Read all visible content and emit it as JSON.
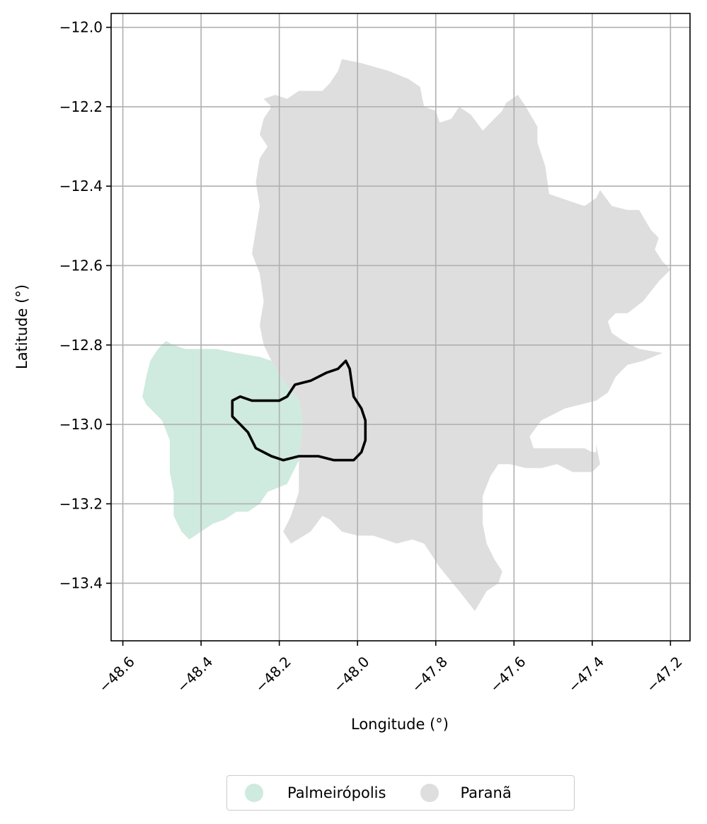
{
  "map": {
    "xlabel": "Longitude (°)",
    "ylabel": "Latitude (°)",
    "xlim": [
      -48.63,
      -47.15
    ],
    "ylim": [
      -13.545,
      -11.965
    ],
    "x_ticks": [
      -48.6,
      -48.4,
      -48.2,
      -48.0,
      -47.8,
      -47.6,
      -47.4,
      -47.2
    ],
    "y_ticks": [
      -12.0,
      -12.2,
      -12.4,
      -12.6,
      -12.8,
      -13.0,
      -13.2,
      -13.4
    ],
    "x_tick_labels": [
      "−48.6",
      "−48.4",
      "−48.2",
      "−48.0",
      "−47.8",
      "−47.6",
      "−47.4",
      "−47.2"
    ],
    "y_tick_labels": [
      "−12.0",
      "−12.2",
      "−12.4",
      "−12.6",
      "−12.8",
      "−13.0",
      "−13.2",
      "−13.4"
    ],
    "grid": true,
    "regions": [
      {
        "name": "Paranã",
        "color": "#dedede",
        "coords": [
          [
            -48.07,
            -12.14
          ],
          [
            -48.05,
            -12.11
          ],
          [
            -48.04,
            -12.08
          ],
          [
            -47.99,
            -12.09
          ],
          [
            -47.92,
            -12.11
          ],
          [
            -47.87,
            -12.13
          ],
          [
            -47.84,
            -12.15
          ],
          [
            -47.83,
            -12.2
          ],
          [
            -47.8,
            -12.21
          ],
          [
            -47.79,
            -12.24
          ],
          [
            -47.76,
            -12.23
          ],
          [
            -47.74,
            -12.2
          ],
          [
            -47.71,
            -12.22
          ],
          [
            -47.68,
            -12.26
          ],
          [
            -47.63,
            -12.21
          ],
          [
            -47.62,
            -12.19
          ],
          [
            -47.59,
            -12.17
          ],
          [
            -47.57,
            -12.2
          ],
          [
            -47.54,
            -12.25
          ],
          [
            -47.54,
            -12.29
          ],
          [
            -47.52,
            -12.35
          ],
          [
            -47.51,
            -12.42
          ],
          [
            -47.48,
            -12.43
          ],
          [
            -47.45,
            -12.44
          ],
          [
            -47.42,
            -12.45
          ],
          [
            -47.39,
            -12.43
          ],
          [
            -47.38,
            -12.41
          ],
          [
            -47.35,
            -12.45
          ],
          [
            -47.31,
            -12.46
          ],
          [
            -47.28,
            -12.46
          ],
          [
            -47.25,
            -12.51
          ],
          [
            -47.23,
            -12.53
          ],
          [
            -47.24,
            -12.56
          ],
          [
            -47.22,
            -12.59
          ],
          [
            -47.2,
            -12.61
          ],
          [
            -47.23,
            -12.64
          ],
          [
            -47.27,
            -12.69
          ],
          [
            -47.31,
            -12.72
          ],
          [
            -47.34,
            -12.72
          ],
          [
            -47.36,
            -12.74
          ],
          [
            -47.35,
            -12.77
          ],
          [
            -47.32,
            -12.79
          ],
          [
            -47.28,
            -12.81
          ],
          [
            -47.22,
            -12.82
          ],
          [
            -47.27,
            -12.84
          ],
          [
            -47.31,
            -12.85
          ],
          [
            -47.34,
            -12.88
          ],
          [
            -47.36,
            -12.92
          ],
          [
            -47.39,
            -12.94
          ],
          [
            -47.43,
            -12.95
          ],
          [
            -47.47,
            -12.96
          ],
          [
            -47.53,
            -12.99
          ],
          [
            -47.56,
            -13.03
          ],
          [
            -47.55,
            -13.06
          ],
          [
            -47.51,
            -13.06
          ],
          [
            -47.45,
            -13.06
          ],
          [
            -47.42,
            -13.06
          ],
          [
            -47.4,
            -13.07
          ],
          [
            -47.39,
            -13.07
          ],
          [
            -47.39,
            -13.05
          ],
          [
            -47.38,
            -13.1
          ],
          [
            -47.4,
            -13.12
          ],
          [
            -47.45,
            -13.12
          ],
          [
            -47.49,
            -13.1
          ],
          [
            -47.53,
            -13.11
          ],
          [
            -47.57,
            -13.11
          ],
          [
            -47.61,
            -13.1
          ],
          [
            -47.64,
            -13.1
          ],
          [
            -47.66,
            -13.13
          ],
          [
            -47.68,
            -13.18
          ],
          [
            -47.68,
            -13.25
          ],
          [
            -47.67,
            -13.3
          ],
          [
            -47.65,
            -13.34
          ],
          [
            -47.63,
            -13.37
          ],
          [
            -47.64,
            -13.4
          ],
          [
            -47.67,
            -13.42
          ],
          [
            -47.7,
            -13.47
          ],
          [
            -47.74,
            -13.42
          ],
          [
            -47.79,
            -13.36
          ],
          [
            -47.83,
            -13.3
          ],
          [
            -47.86,
            -13.29
          ],
          [
            -47.9,
            -13.3
          ],
          [
            -47.93,
            -13.29
          ],
          [
            -47.96,
            -13.28
          ],
          [
            -48.0,
            -13.28
          ],
          [
            -48.04,
            -13.27
          ],
          [
            -48.07,
            -13.24
          ],
          [
            -48.09,
            -13.23
          ],
          [
            -48.12,
            -13.27
          ],
          [
            -48.17,
            -13.3
          ],
          [
            -48.19,
            -13.27
          ],
          [
            -48.17,
            -13.23
          ],
          [
            -48.15,
            -13.17
          ],
          [
            -48.15,
            -13.09
          ],
          [
            -48.14,
            -13.0
          ],
          [
            -48.15,
            -12.94
          ],
          [
            -48.19,
            -12.89
          ],
          [
            -48.22,
            -12.84
          ],
          [
            -48.24,
            -12.8
          ],
          [
            -48.25,
            -12.75
          ],
          [
            -48.24,
            -12.69
          ],
          [
            -48.25,
            -12.62
          ],
          [
            -48.27,
            -12.57
          ],
          [
            -48.26,
            -12.51
          ],
          [
            -48.25,
            -12.45
          ],
          [
            -48.26,
            -12.39
          ],
          [
            -48.25,
            -12.33
          ],
          [
            -48.23,
            -12.3
          ],
          [
            -48.25,
            -12.27
          ],
          [
            -48.24,
            -12.23
          ],
          [
            -48.22,
            -12.2
          ],
          [
            -48.24,
            -12.18
          ],
          [
            -48.21,
            -12.17
          ],
          [
            -48.18,
            -12.18
          ],
          [
            -48.15,
            -12.16
          ],
          [
            -48.12,
            -12.16
          ],
          [
            -48.09,
            -12.16
          ]
        ]
      },
      {
        "name": "Palmeirópolis",
        "color": "#cfeade",
        "coords": [
          [
            -48.49,
            -12.79
          ],
          [
            -48.47,
            -12.8
          ],
          [
            -48.44,
            -12.81
          ],
          [
            -48.4,
            -12.81
          ],
          [
            -48.36,
            -12.81
          ],
          [
            -48.31,
            -12.82
          ],
          [
            -48.25,
            -12.83
          ],
          [
            -48.22,
            -12.84
          ],
          [
            -48.19,
            -12.89
          ],
          [
            -48.15,
            -12.94
          ],
          [
            -48.14,
            -13.0
          ],
          [
            -48.15,
            -13.09
          ],
          [
            -48.18,
            -13.15
          ],
          [
            -48.23,
            -13.17
          ],
          [
            -48.25,
            -13.2
          ],
          [
            -48.28,
            -13.22
          ],
          [
            -48.31,
            -13.22
          ],
          [
            -48.34,
            -13.24
          ],
          [
            -48.37,
            -13.25
          ],
          [
            -48.4,
            -13.27
          ],
          [
            -48.43,
            -13.29
          ],
          [
            -48.45,
            -13.27
          ],
          [
            -48.47,
            -13.23
          ],
          [
            -48.47,
            -13.17
          ],
          [
            -48.48,
            -13.12
          ],
          [
            -48.48,
            -13.04
          ],
          [
            -48.5,
            -12.99
          ],
          [
            -48.54,
            -12.95
          ],
          [
            -48.55,
            -12.93
          ],
          [
            -48.54,
            -12.88
          ],
          [
            -48.53,
            -12.84
          ],
          [
            -48.51,
            -12.81
          ]
        ]
      }
    ],
    "outline": {
      "color": "#000000",
      "coords": [
        [
          -48.3,
          -12.93
        ],
        [
          -48.27,
          -12.94
        ],
        [
          -48.26,
          -12.94
        ],
        [
          -48.2,
          -12.94
        ],
        [
          -48.18,
          -12.93
        ],
        [
          -48.16,
          -12.9
        ],
        [
          -48.12,
          -12.89
        ],
        [
          -48.08,
          -12.87
        ],
        [
          -48.05,
          -12.86
        ],
        [
          -48.03,
          -12.84
        ],
        [
          -48.02,
          -12.86
        ],
        [
          -48.01,
          -12.93
        ],
        [
          -47.99,
          -12.96
        ],
        [
          -47.98,
          -12.99
        ],
        [
          -47.98,
          -13.04
        ],
        [
          -47.99,
          -13.07
        ],
        [
          -48.01,
          -13.09
        ],
        [
          -48.06,
          -13.09
        ],
        [
          -48.1,
          -13.08
        ],
        [
          -48.15,
          -13.08
        ],
        [
          -48.19,
          -13.09
        ],
        [
          -48.22,
          -13.08
        ],
        [
          -48.26,
          -13.06
        ],
        [
          -48.28,
          -13.02
        ],
        [
          -48.3,
          -13.0
        ],
        [
          -48.32,
          -12.98
        ],
        [
          -48.32,
          -12.94
        ]
      ]
    },
    "legend": {
      "placement": "bottom-center",
      "items": [
        {
          "label": "Palmeirópolis",
          "color": "#cfeade"
        },
        {
          "label": "Paranã",
          "color": "#dedede"
        }
      ]
    }
  }
}
